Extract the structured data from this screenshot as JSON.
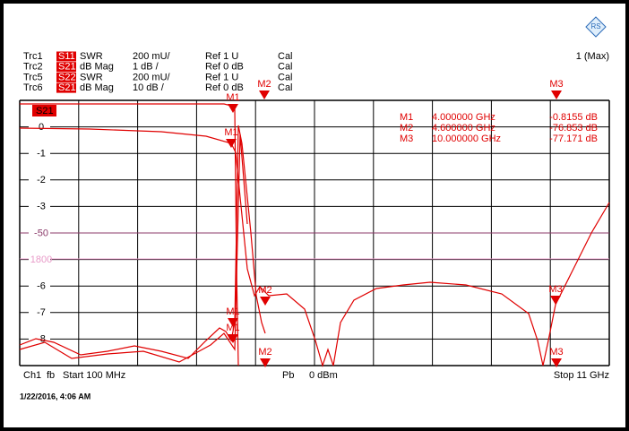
{
  "header": {
    "traces": [
      {
        "trace": "Trc1",
        "param": "S11",
        "format": "SWR",
        "scale": "200 mU/",
        "ref": "Ref 1 U",
        "cal": "Cal"
      },
      {
        "trace": "Trc2",
        "param": "S21",
        "format": "dB Mag",
        "scale": "1 dB /",
        "ref": "Ref 0 dB",
        "cal": "Cal"
      },
      {
        "trace": "Trc5",
        "param": "S22",
        "format": "SWR",
        "scale": "200 mU/",
        "ref": "Ref 1 U",
        "cal": "Cal"
      },
      {
        "trace": "Trc6",
        "param": "S21",
        "format": "dB Mag",
        "scale": "10 dB /",
        "ref": "Ref 0 dB",
        "cal": "Cal"
      }
    ],
    "max_label": "1 (Max)"
  },
  "active_trace": "S21",
  "y_labels": [
    "0",
    "-1",
    "-2",
    "-3",
    "-50",
    "1800",
    "-6",
    "-7",
    "-8"
  ],
  "marker_table": [
    {
      "name": "M1",
      "freq": "4.000000 GHz",
      "value": "-0.8155 dB"
    },
    {
      "name": "M2",
      "freq": "4.600000 GHz",
      "value": "-76.853 dB"
    },
    {
      "name": "M3",
      "freq": "10.000000 GHz",
      "value": "-77.171 dB"
    }
  ],
  "markers": [
    "M1",
    "M2",
    "M3",
    "M1",
    "M2",
    "M3",
    "M1",
    "M1",
    "M2",
    "M3"
  ],
  "footer": {
    "channel": "Ch1",
    "mode": "fb",
    "start": "Start 100 MHz",
    "power_label": "Pb",
    "power": "0 dBm",
    "stop": "Stop 11 GHz"
  },
  "timestamp": "1/22/2016, 4:06 AM"
}
